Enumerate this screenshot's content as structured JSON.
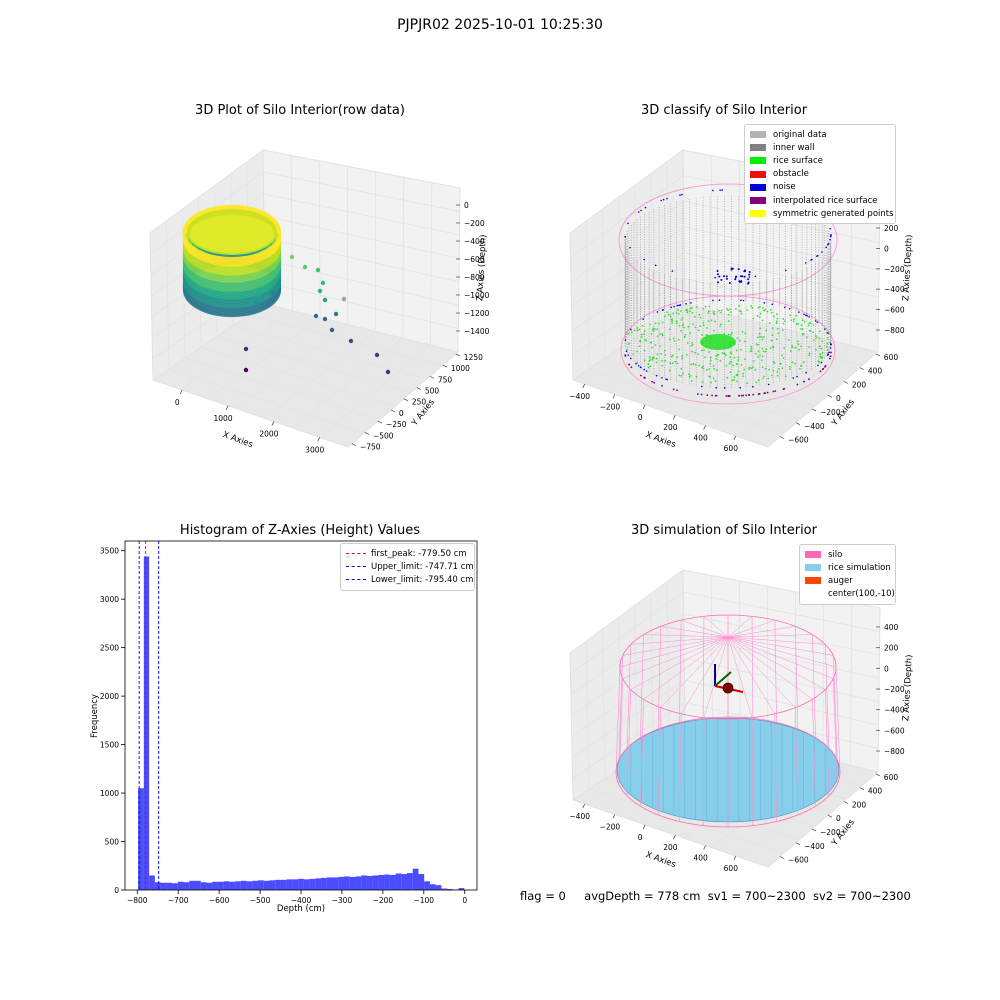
{
  "figure_title": "PJPJR02 2025-10-01 10:25:30",
  "status": {
    "flag": "flag = 0",
    "avg_depth": "avgDepth = 778 cm",
    "sv1": "sv1 = 700~2300",
    "sv2": "sv2 = 700~2300"
  },
  "panels": {
    "raw": {
      "title": "3D Plot of Silo Interior(row data)",
      "x_label": "X Axies",
      "y_label": "Y Axies",
      "z_label": "Z Axies (Depth)",
      "x_ticks": [
        "0",
        "1000",
        "2000",
        "3000"
      ],
      "y_ticks": [
        "1250",
        "1000",
        "750",
        "500",
        "250",
        "0",
        "−250",
        "−500",
        "−750"
      ],
      "z_ticks": [
        "0",
        "−200",
        "−400",
        "−600",
        "−800",
        "−1000",
        "−1200",
        "−1400"
      ]
    },
    "classify": {
      "title": "3D classify of Silo Interior",
      "x_label": "X Axies",
      "y_label": "Y Axies",
      "z_label": "Z Axies (Depth)",
      "x_ticks": [
        "−400",
        "−200",
        "0",
        "200",
        "400",
        "600"
      ],
      "y_ticks": [
        "600",
        "400",
        "200",
        "0",
        "−200",
        "−400",
        "−600"
      ],
      "z_ticks": [
        "200",
        "0",
        "−200",
        "−400",
        "−600",
        "−800"
      ],
      "legend": [
        {
          "label": "original data",
          "color": "#b3b3b3"
        },
        {
          "label": "inner wall",
          "color": "#808080"
        },
        {
          "label": "rice surface",
          "color": "#00ee00"
        },
        {
          "label": "obstacle",
          "color": "#ee1111"
        },
        {
          "label": "noise",
          "color": "#0000dd"
        },
        {
          "label": "interpolated rice surface",
          "color": "#800080"
        },
        {
          "label": "symmetric generated points",
          "color": "#ffff00"
        }
      ]
    },
    "simulation": {
      "title": "3D simulation of Silo Interior",
      "x_label": "X Axies",
      "y_label": "Y Axies",
      "z_label": "Z Axies (Depth)",
      "x_ticks": [
        "−400",
        "−200",
        "0",
        "200",
        "400",
        "600"
      ],
      "y_ticks": [
        "600",
        "400",
        "200",
        "0",
        "−200",
        "−400",
        "−600"
      ],
      "z_ticks": [
        "400",
        "200",
        "0",
        "−200",
        "−400",
        "−600",
        "−800"
      ],
      "legend": [
        {
          "label": "silo",
          "color": "#ff69b4"
        },
        {
          "label": "rice simulation",
          "color": "#87ceeb"
        },
        {
          "label": "auger",
          "color": "#ff4500"
        },
        {
          "label": "center(100,-10)",
          "color": ""
        }
      ]
    }
  },
  "chart_data": {
    "type": "bar",
    "title": "Histogram of Z-Axies (Height) Values",
    "xlabel": "Depth (cm)",
    "ylabel": "Frequency",
    "xlim": [
      -830,
      30
    ],
    "ylim": [
      0,
      3600
    ],
    "x_ticks": [
      -800,
      -700,
      -600,
      -500,
      -400,
      -300,
      -200,
      -100,
      0
    ],
    "y_ticks": [
      0,
      500,
      1000,
      1500,
      2000,
      2500,
      3000,
      3500
    ],
    "bar_color": "#0000ff",
    "bins": [
      [
        -798,
        -784,
        1050
      ],
      [
        -784,
        -771,
        3440
      ],
      [
        -771,
        -757,
        150
      ],
      [
        -757,
        -743,
        80
      ],
      [
        -743,
        -729,
        75
      ],
      [
        -729,
        -715,
        75
      ],
      [
        -715,
        -701,
        70
      ],
      [
        -701,
        -687,
        85
      ],
      [
        -687,
        -673,
        80
      ],
      [
        -673,
        -659,
        95
      ],
      [
        -659,
        -645,
        95
      ],
      [
        -645,
        -631,
        80
      ],
      [
        -631,
        -617,
        75
      ],
      [
        -617,
        -603,
        85
      ],
      [
        -603,
        -589,
        85
      ],
      [
        -589,
        -575,
        90
      ],
      [
        -575,
        -561,
        85
      ],
      [
        -561,
        -547,
        90
      ],
      [
        -547,
        -533,
        95
      ],
      [
        -533,
        -519,
        90
      ],
      [
        -519,
        -505,
        95
      ],
      [
        -505,
        -491,
        100
      ],
      [
        -491,
        -477,
        95
      ],
      [
        -477,
        -463,
        100
      ],
      [
        -463,
        -449,
        105
      ],
      [
        -449,
        -435,
        105
      ],
      [
        -435,
        -421,
        110
      ],
      [
        -421,
        -407,
        110
      ],
      [
        -407,
        -393,
        115
      ],
      [
        -393,
        -379,
        110
      ],
      [
        -379,
        -365,
        115
      ],
      [
        -365,
        -351,
        120
      ],
      [
        -351,
        -337,
        125
      ],
      [
        -337,
        -323,
        130
      ],
      [
        -323,
        -309,
        130
      ],
      [
        -309,
        -295,
        135
      ],
      [
        -295,
        -281,
        140
      ],
      [
        -281,
        -267,
        135
      ],
      [
        -267,
        -253,
        140
      ],
      [
        -253,
        -239,
        150
      ],
      [
        -239,
        -225,
        145
      ],
      [
        -225,
        -211,
        150
      ],
      [
        -211,
        -197,
        155
      ],
      [
        -197,
        -183,
        160
      ],
      [
        -183,
        -169,
        155
      ],
      [
        -169,
        -155,
        170
      ],
      [
        -155,
        -141,
        165
      ],
      [
        -141,
        -127,
        175
      ],
      [
        -127,
        -113,
        220
      ],
      [
        -113,
        -99,
        165
      ],
      [
        -99,
        -85,
        90
      ],
      [
        -85,
        -71,
        60
      ],
      [
        -71,
        -57,
        50
      ],
      [
        -57,
        -43,
        15
      ],
      [
        -43,
        -29,
        10
      ],
      [
        -29,
        -15,
        5
      ],
      [
        -15,
        -1,
        20
      ]
    ],
    "vlines": [
      {
        "label": "first_peak: -779.50 cm",
        "x": -779.5,
        "color": "#ff0000"
      },
      {
        "label": "Upper_limit: -747.71 cm",
        "x": -747.71,
        "color": "#0000ff"
      },
      {
        "label": "Lower_limit: -795.40 cm",
        "x": -795.4,
        "color": "#0000ff"
      }
    ],
    "legend_position": "upper right"
  }
}
